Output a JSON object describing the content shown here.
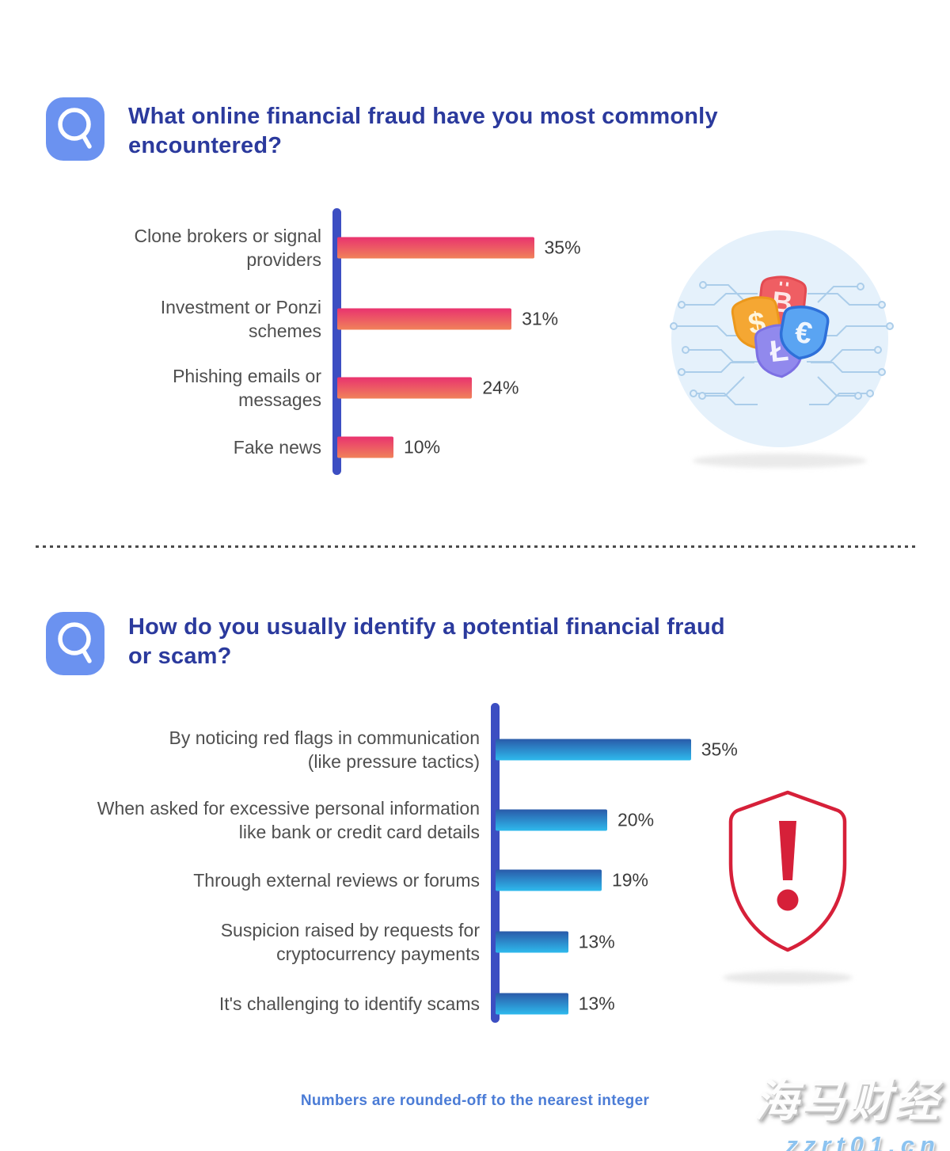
{
  "questions": [
    {
      "icon": "magnifier",
      "title_lines": [
        "What online financial fraud have you most commonly",
        "encountered?"
      ]
    },
    {
      "icon": "magnifier",
      "title_lines": [
        "How do you usually identify a potential financial fraud",
        "or scam?"
      ]
    }
  ],
  "chart_data": [
    {
      "type": "bar",
      "orientation": "horizontal",
      "title": "What online financial fraud have you most commonly encountered?",
      "categories": [
        "Clone brokers or signal providers",
        "Investment or Ponzi schemes",
        "Phishing emails or messages",
        "Fake news"
      ],
      "label_lines": [
        [
          "Clone brokers or signal",
          "providers"
        ],
        [
          "Investment or Ponzi",
          "schemes"
        ],
        [
          "Phishing emails or",
          "messages"
        ],
        [
          "Fake news"
        ]
      ],
      "values": [
        35,
        31,
        24,
        10
      ],
      "value_labels": [
        "35%",
        "31%",
        "24%",
        "10%"
      ],
      "unit": "%",
      "xlim": [
        0,
        40
      ],
      "grid": false,
      "bar_gradient": [
        "#E9326F",
        "#F0825A"
      ],
      "axis_color": "#3C4EC2"
    },
    {
      "type": "bar",
      "orientation": "horizontal",
      "title": "How do you usually identify a potential financial fraud or scam?",
      "categories": [
        "By noticing red flags in communication (like pressure tactics)",
        "When asked for excessive personal information like bank or credit card details",
        "Through external reviews or forums",
        "Suspicion raised by requests for cryptocurrency payments",
        "It's challenging to identify scams"
      ],
      "label_lines": [
        [
          "By noticing red flags in communication",
          "(like pressure tactics)"
        ],
        [
          "When asked for excessive personal information",
          "like bank or credit card details"
        ],
        [
          "Through external reviews or forums"
        ],
        [
          "Suspicion raised by requests for",
          "cryptocurrency payments"
        ],
        [
          "It's challenging to identify scams"
        ]
      ],
      "values": [
        35,
        20,
        19,
        13,
        13
      ],
      "value_labels": [
        "35%",
        "20%",
        "19%",
        "13%",
        "13%"
      ],
      "unit": "%",
      "xlim": [
        0,
        40
      ],
      "grid": false,
      "bar_gradient": [
        "#2A5AA9",
        "#2EBAED"
      ],
      "axis_color": "#3C4EC2"
    }
  ],
  "illustrations": {
    "currency_shields": {
      "description": "circle with circuit traces and four currency shield badges",
      "circle_color": "#E5F1FB",
      "trace_color": "#ABCDEA",
      "shields": [
        {
          "symbol": "$",
          "color": "#F5A733"
        },
        {
          "symbol": "B",
          "color": "#EF5E63"
        },
        {
          "symbol": "€",
          "color": "#5AA4F2"
        },
        {
          "symbol": "Ł",
          "color": "#9189ED"
        }
      ]
    },
    "alert_shield": {
      "description": "outlined shield with exclamation mark",
      "color": "#D62039",
      "symbol": "!"
    }
  },
  "footer_note": "Numbers are rounded-off to the nearest integer",
  "watermark": {
    "line1": "海马财经",
    "line2": "zzrt01.cn"
  },
  "colors": {
    "question_badge": "#6B92F0",
    "title_text": "#2B3A9D",
    "label_text": "#4F4F4F",
    "value_text": "#3C3C3C",
    "footer_text": "#4B7CD6",
    "divider": "#4A4A4A"
  }
}
